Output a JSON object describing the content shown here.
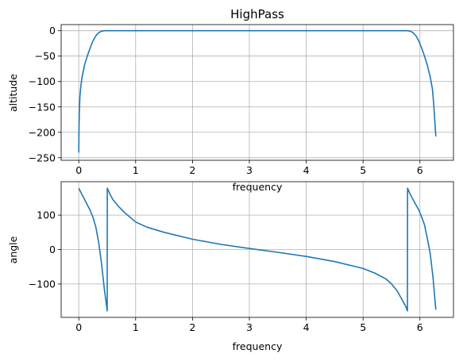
{
  "chart_data": [
    {
      "type": "line",
      "title": "HighPass",
      "xlabel": "frequency",
      "ylabel": "altitude",
      "xlim": [
        -0.31,
        6.59
      ],
      "ylim": [
        -255,
        12
      ],
      "xticks": [
        0,
        1,
        2,
        3,
        4,
        5,
        6
      ],
      "yticks": [
        0,
        -50,
        -100,
        -150,
        -200,
        -250
      ],
      "grid": true,
      "series_color": "#1f77b4",
      "series": [
        {
          "x": [
            0,
            0.003,
            0.01,
            0.02,
            0.04,
            0.06,
            0.1,
            0.15,
            0.2,
            0.25,
            0.3,
            0.35,
            0.4,
            0.45,
            0.5,
            1.0,
            2.0,
            3.0,
            4.0,
            5.0,
            5.78,
            5.83,
            5.88,
            5.93,
            5.98,
            6.03,
            6.08,
            6.13,
            6.18,
            6.22,
            6.24,
            6.26,
            6.28
          ],
          "y": [
            -240,
            -200,
            -160,
            -130,
            -105,
            -90,
            -68,
            -50,
            -34,
            -20,
            -10,
            -4,
            -1,
            0,
            0,
            0,
            0,
            0,
            0,
            0,
            0,
            -1,
            -4,
            -10,
            -20,
            -34,
            -50,
            -68,
            -90,
            -115,
            -140,
            -175,
            -208
          ]
        }
      ]
    },
    {
      "type": "line",
      "xlabel": "frequency",
      "ylabel": "angle",
      "xlim": [
        -0.31,
        6.59
      ],
      "ylim": [
        -197,
        197
      ],
      "xticks": [
        0,
        1,
        2,
        3,
        4,
        5,
        6
      ],
      "yticks": [
        100,
        0,
        -100
      ],
      "grid": true,
      "series_color": "#1f77b4",
      "series": [
        {
          "x": [
            0,
            0.05,
            0.1,
            0.15,
            0.2,
            0.25,
            0.3,
            0.35,
            0.4,
            0.45,
            0.5,
            0.502,
            0.55,
            0.6,
            0.7,
            0.8,
            1.0,
            1.2,
            1.5,
            2.0,
            2.5,
            3.0,
            3.5,
            4.0,
            4.5,
            5.0,
            5.2,
            5.4,
            5.5,
            5.6,
            5.7,
            5.75,
            5.78,
            5.782,
            5.83,
            5.88,
            5.93,
            5.98,
            6.03,
            6.08,
            6.13,
            6.18,
            6.23,
            6.28
          ],
          "y": [
            178,
            162,
            146,
            130,
            114,
            93,
            65,
            20,
            -40,
            -115,
            -178,
            178,
            160,
            145,
            125,
            108,
            80,
            65,
            50,
            30,
            15,
            3,
            -8,
            -20,
            -35,
            -55,
            -68,
            -85,
            -100,
            -120,
            -150,
            -165,
            -178,
            178,
            160,
            145,
            130,
            115,
            95,
            72,
            32,
            -10,
            -80,
            -175
          ]
        }
      ]
    }
  ]
}
